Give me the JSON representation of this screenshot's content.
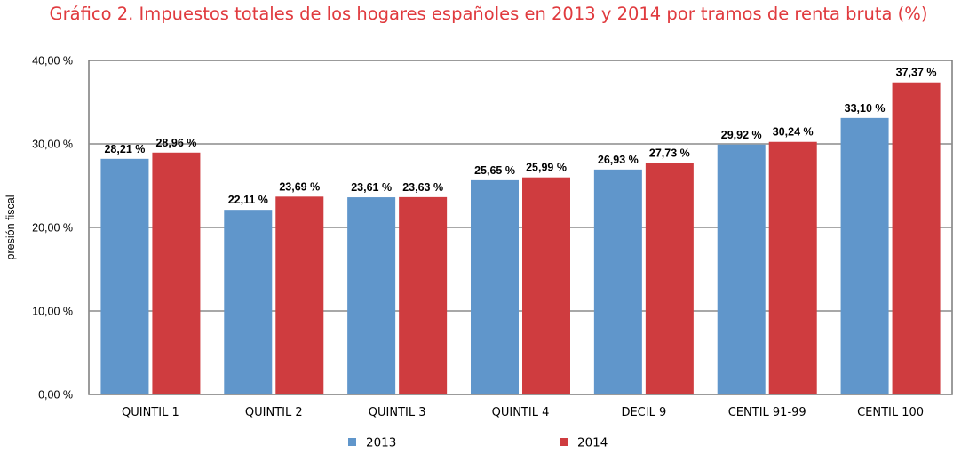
{
  "chart_data": {
    "type": "bar",
    "title": "Gráfico 2. Impuestos totales de los hogares españoles en 2013 y 2014 por tramos de renta bruta (%)",
    "ylabel": "presión fiscal",
    "xlabel": "",
    "ylim": [
      0,
      40
    ],
    "yticks": [
      0,
      10,
      20,
      30,
      40
    ],
    "ytick_labels": [
      "0,00 %",
      "10,00 %",
      "20,00 %",
      "30,00 %",
      "40,00 %"
    ],
    "grid": true,
    "legend_position": "bottom",
    "categories": [
      "QUINTIL 1",
      "QUINTIL 2",
      "QUINTIL 3",
      "QUINTIL 4",
      "DECIL 9",
      "CENTIL 91-99",
      "CENTIL 100"
    ],
    "series": [
      {
        "name": "2013",
        "color": "#6096cb",
        "values": [
          28.21,
          22.11,
          23.61,
          25.65,
          26.93,
          29.92,
          33.1
        ],
        "labels": [
          "28,21 %",
          "22,11 %",
          "23,61 %",
          "25,65 %",
          "26,93 %",
          "29,92 %",
          "33,10 %"
        ]
      },
      {
        "name": "2014",
        "color": "#cf3c3f",
        "values": [
          28.96,
          23.69,
          23.63,
          25.99,
          27.73,
          30.24,
          37.37
        ],
        "labels": [
          "28,96 %",
          "23,69 %",
          "23,63 %",
          "25,99 %",
          "27,73 %",
          "30,24 %",
          "37,37 %"
        ]
      }
    ]
  }
}
